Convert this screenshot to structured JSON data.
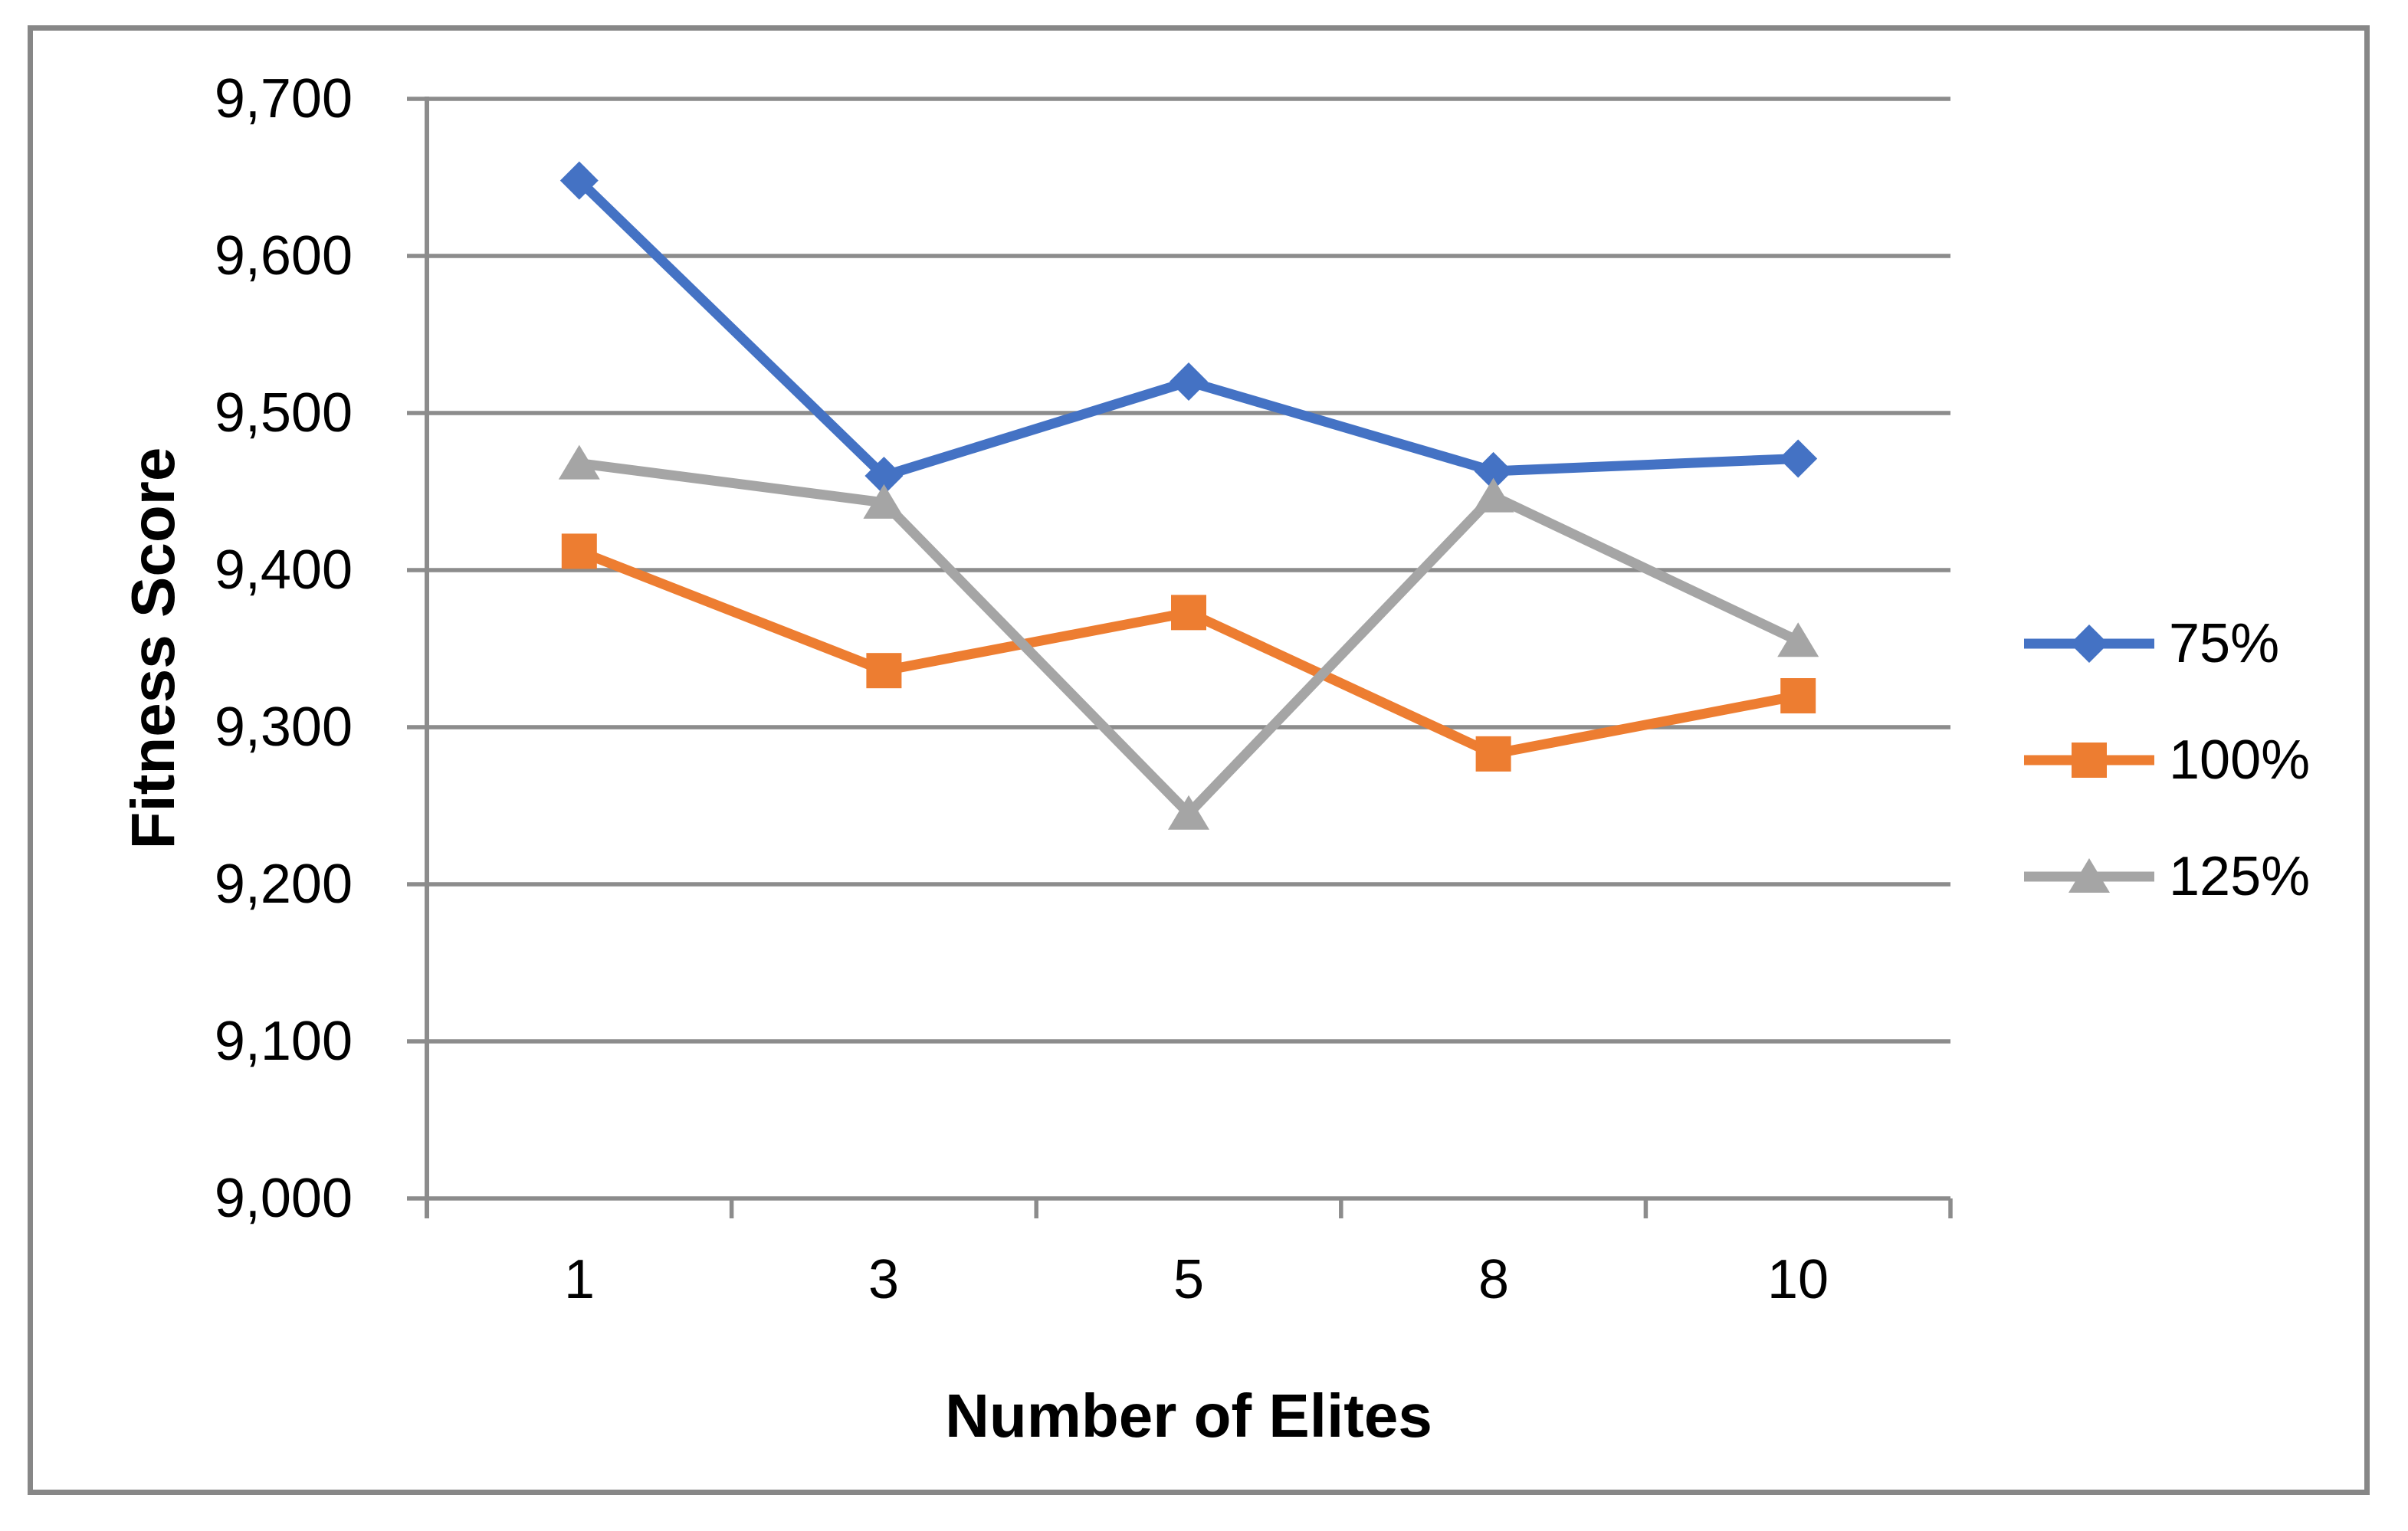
{
  "figure": {
    "background": "#ffffff",
    "border_color": "#878787",
    "grid_color": "#8c8c8c",
    "axis_color": "#8c8c8c",
    "text_color": "#000000"
  },
  "chart_data": {
    "type": "line",
    "title": "",
    "xlabel": "Number of Elites",
    "ylabel": "Fitness Score",
    "categories": [
      "1",
      "3",
      "5",
      "8",
      "10"
    ],
    "x_tick_labels": [
      "1",
      "3",
      "5",
      "8",
      "10"
    ],
    "y_ticks": [
      9000,
      9100,
      9200,
      9300,
      9400,
      9500,
      9600,
      9700
    ],
    "y_tick_labels_top_to_bottom": [
      "9,700",
      "9,600",
      "9,500",
      "9,400",
      "9,300",
      "9,200",
      "9,100",
      "9,000"
    ],
    "ylim": [
      9000,
      9700
    ],
    "grid": true,
    "legend_position": "right",
    "series": [
      {
        "name": "75%",
        "marker": "diamond",
        "color": "#4472C4",
        "values": [
          9648,
          9460,
          9520,
          9463,
          9471
        ]
      },
      {
        "name": "100%",
        "marker": "square",
        "color": "#ED7D31",
        "values": [
          9412,
          9336,
          9373,
          9283,
          9320
        ]
      },
      {
        "name": "125%",
        "marker": "triangle",
        "color": "#A5A5A5",
        "values": [
          9468,
          9443,
          9245,
          9447,
          9355
        ]
      }
    ]
  }
}
